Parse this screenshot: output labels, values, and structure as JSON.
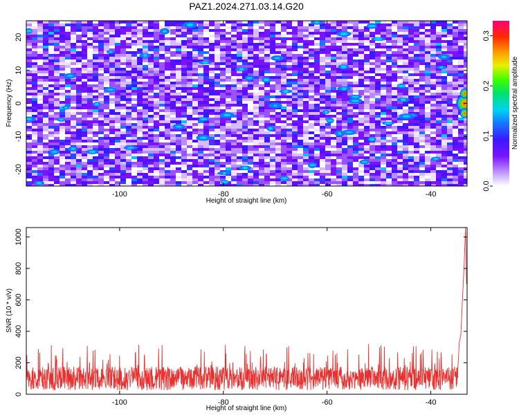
{
  "title": "PAZ1.2024.271.03.14.G20",
  "chart_data": [
    {
      "type": "heatmap",
      "xlabel": "Height of straight line (km)",
      "ylabel": "Frequency (Hz)",
      "xlim": [
        -118,
        -33
      ],
      "ylim": [
        -25,
        25
      ],
      "xticks": [
        -100,
        -80,
        -60,
        -40
      ],
      "yticks": [
        -20,
        -10,
        0,
        10,
        20
      ],
      "colorbar": {
        "label": "Normalized spectral amplitude",
        "range": [
          0.0,
          0.33
        ],
        "ticks": [
          "0.0",
          "0.1",
          "0.2",
          "0.3"
        ],
        "colormap": "white-purple-blue-cyan-green-yellow-red-magenta"
      },
      "features": [
        {
          "x": -33.5,
          "y": 0,
          "value": 0.3,
          "note": "peak at right edge near 0 Hz"
        },
        {
          "x": -33.5,
          "y": 3,
          "value": 0.1
        },
        {
          "x": -33.5,
          "y": -3,
          "value": 0.1
        }
      ],
      "background_level": 0.03
    },
    {
      "type": "line",
      "xlabel": "Height of straight line (km)",
      "ylabel": "SNR (10 * v/v)",
      "xlim": [
        -118,
        -33
      ],
      "ylim": [
        0,
        1060
      ],
      "xticks": [
        -100,
        -80,
        -60,
        -40
      ],
      "yticks": [
        0,
        200,
        400,
        600,
        800,
        1000
      ],
      "series": [
        {
          "color": "#e8302e",
          "noise_mean": 100,
          "noise_peak": 320,
          "x_start": -118,
          "x_end": -33,
          "rise_points": [
            {
              "x": -34.8,
              "y": 150
            },
            {
              "x": -34.5,
              "y": 330
            },
            {
              "x": -34.2,
              "y": 380
            },
            {
              "x": -33.9,
              "y": 600
            },
            {
              "x": -33.6,
              "y": 800
            },
            {
              "x": -33.3,
              "y": 1060
            },
            {
              "x": -33.1,
              "y": 700
            }
          ]
        }
      ]
    }
  ]
}
